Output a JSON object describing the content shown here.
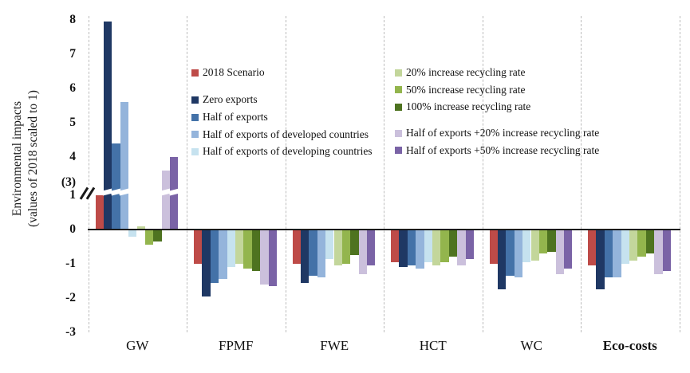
{
  "chart_data": {
    "type": "bar",
    "title": "",
    "ylabel": "Environmental impacts (values of 2018 scaled to 1)",
    "ylabel_line1": "Environmental impacts",
    "ylabel_line2": "(values of 2018 scaled to 1)",
    "categories": [
      {
        "label": "GW",
        "bold": false
      },
      {
        "label": "FPMF",
        "bold": false
      },
      {
        "label": "FWE",
        "bold": false
      },
      {
        "label": "HCT",
        "bold": false
      },
      {
        "label": "WC",
        "bold": false
      },
      {
        "label": "Eco-costs",
        "bold": true
      }
    ],
    "series": [
      {
        "name": "2018 Scenario",
        "color": "#BE4B48",
        "values": [
          1.0,
          -1.0,
          -1.0,
          -0.95,
          -1.0,
          -1.05
        ]
      },
      {
        "name": "Zero exports",
        "color": "#1F3864",
        "values": [
          7.95,
          -1.95,
          -1.55,
          -1.1,
          -1.75,
          -1.75
        ]
      },
      {
        "name": "Half of exports",
        "color": "#4472A8",
        "values": [
          4.4,
          -1.55,
          -1.35,
          -1.05,
          -1.35,
          -1.4
        ]
      },
      {
        "name": "Half of exports of developed countries",
        "color": "#94B4DB",
        "values": [
          5.6,
          -1.45,
          -1.4,
          -1.15,
          -1.4,
          -1.4
        ]
      },
      {
        "name": "Half of exports of developing countries",
        "color": "#C6E2EF",
        "values": [
          -0.2,
          -1.1,
          -0.85,
          -0.95,
          -0.95,
          -1.0
        ]
      },
      {
        "name": "20% increase recycling rate",
        "color": "#C3D69B",
        "values": [
          0.1,
          -1.0,
          -1.05,
          -1.05,
          -0.9,
          -0.9
        ]
      },
      {
        "name": "50% increase recycling rate",
        "color": "#93B54D",
        "values": [
          -0.45,
          -1.15,
          -1.0,
          -0.95,
          -0.7,
          -0.8
        ]
      },
      {
        "name": "100% increase recycling rate",
        "color": "#4E7320",
        "values": [
          -0.35,
          -1.2,
          -0.75,
          -0.8,
          -0.65,
          -0.7
        ]
      },
      {
        "name": "Half of exports +20% increase recycling rate",
        "color": "#CBC0DC",
        "values": [
          3.6,
          -1.6,
          -1.3,
          -1.05,
          -1.3,
          -1.3
        ]
      },
      {
        "name": "Half of exports +50% increase recycling rate",
        "color": "#7A63A6",
        "values": [
          4.0,
          -1.65,
          -1.05,
          -0.85,
          -1.15,
          -1.2
        ]
      }
    ],
    "y_axis": {
      "ticks": [
        "8",
        "7",
        "6",
        "5",
        "4",
        "(3)",
        "1",
        "0",
        "-1",
        "-2",
        "-3"
      ],
      "ylim": [
        -3,
        8
      ],
      "break_between": [
        1,
        3
      ]
    },
    "legend_position": "inside-top-two-columns",
    "grid": "vertical-dashed"
  }
}
